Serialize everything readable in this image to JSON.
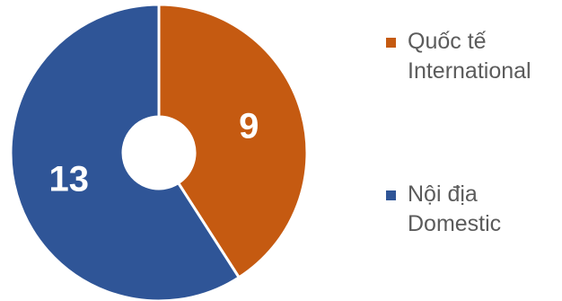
{
  "chart_data": {
    "type": "pie",
    "style": "donut",
    "slices": [
      {
        "label_vi": "Quốc tế",
        "label_en": "International",
        "value": 9,
        "color": "#c55a11"
      },
      {
        "label_vi": "Nội địa",
        "label_en": "Domestic",
        "value": 13,
        "color": "#2f5597"
      }
    ],
    "data_labels": [
      "9",
      "13"
    ],
    "legend_position": "right",
    "start_angle_deg": 0,
    "direction": "clockwise"
  }
}
